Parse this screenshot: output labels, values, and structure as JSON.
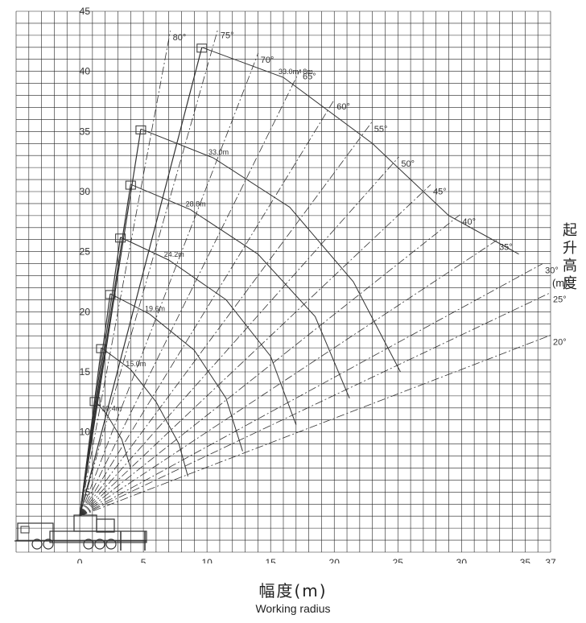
{
  "chart_data": {
    "type": "line",
    "title": "",
    "xlabel": "幅度(m)",
    "xlabel_en": "Working radius",
    "ylabel": "起升高度",
    "ylabel_unit": "(m)",
    "xlim": [
      -5,
      37
    ],
    "ylim": [
      0,
      45
    ],
    "x_ticks": [
      "0",
      "5",
      "10",
      "15",
      "20",
      "25",
      "30",
      "35",
      "37"
    ],
    "y_ticks": [
      "5",
      "10",
      "15",
      "20",
      "25",
      "30",
      "35",
      "40",
      "45"
    ],
    "grid": true,
    "boom_angle_labels": [
      "80°",
      "75°",
      "70°",
      "65°",
      "60°",
      "55°",
      "50°",
      "45°",
      "40°",
      "35°",
      "30°",
      "25°",
      "20°"
    ],
    "boom_angles_deg": [
      80,
      75,
      70,
      65,
      60,
      55,
      50,
      45,
      40,
      35,
      30,
      25,
      20
    ],
    "series": [
      {
        "name": "10.4m",
        "points": [
          [
            1.2,
            12.6
          ],
          [
            2.1,
            11.5
          ],
          [
            3.3,
            9.4
          ],
          [
            4.0,
            7.0
          ]
        ]
      },
      {
        "name": "15.0m",
        "points": [
          [
            1.7,
            17.0
          ],
          [
            4.0,
            15.2
          ],
          [
            6.0,
            12.5
          ],
          [
            7.8,
            9.0
          ],
          [
            8.5,
            6.3
          ]
        ]
      },
      {
        "name": "19.6m",
        "points": [
          [
            2.4,
            21.5
          ],
          [
            5.5,
            19.8
          ],
          [
            9.0,
            16.8
          ],
          [
            11.5,
            12.8
          ],
          [
            12.8,
            8.4
          ]
        ]
      },
      {
        "name": "24.2m",
        "points": [
          [
            3.2,
            26.2
          ],
          [
            7.0,
            24.3
          ],
          [
            11.5,
            21.0
          ],
          [
            15.0,
            16.3
          ],
          [
            17.0,
            10.6
          ]
        ]
      },
      {
        "name": "28.8m",
        "points": [
          [
            4.0,
            30.6
          ],
          [
            8.7,
            28.5
          ],
          [
            14.0,
            24.8
          ],
          [
            18.5,
            19.6
          ],
          [
            21.2,
            12.8
          ]
        ]
      },
      {
        "name": "33.0m",
        "points": [
          [
            4.8,
            35.2
          ],
          [
            10.5,
            32.8
          ],
          [
            16.5,
            28.7
          ],
          [
            21.5,
            22.5
          ],
          [
            25.2,
            15.0
          ]
        ]
      },
      {
        "name": "33.0m+8m",
        "points": [
          [
            9.6,
            42.0
          ],
          [
            16.0,
            39.5
          ],
          [
            23.0,
            34.0
          ],
          [
            29.0,
            28.0
          ],
          [
            34.5,
            24.8
          ]
        ]
      }
    ],
    "annotations": [
      "30°",
      "30°",
      "10.4m",
      "15.0m",
      "19.6m",
      "24.2m",
      "28.8m",
      "33.0m",
      "33.0m+8m"
    ],
    "line_color": "#333333",
    "grid_color": "#222222"
  }
}
